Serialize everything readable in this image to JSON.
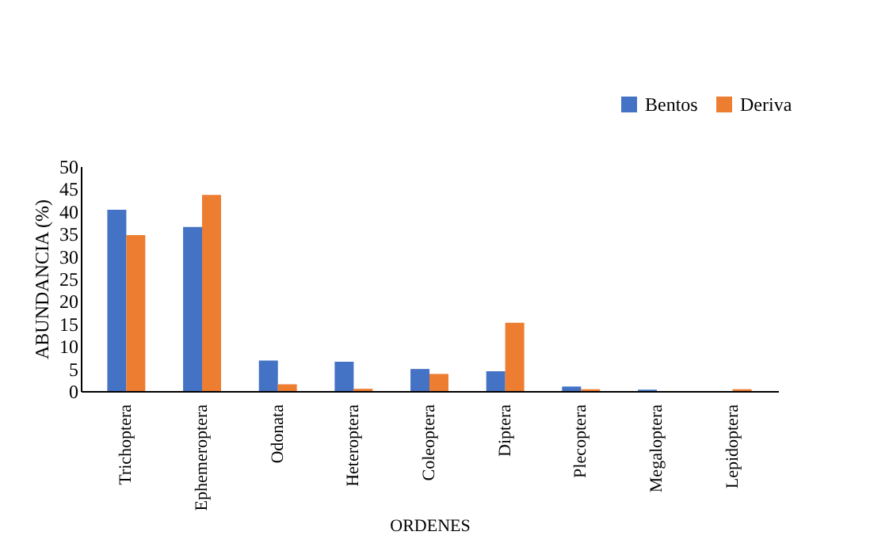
{
  "chart_data": {
    "type": "bar",
    "xlabel": "ORDENES",
    "ylabel": "ABUNDANCIA (%)",
    "categories": [
      "Trichoptera",
      "Ephemeroptera",
      "Odonata",
      "Heteroptera",
      "Coleoptera",
      "Diptera",
      "Plecoptera",
      "Megaloptera",
      "Lepidoptera"
    ],
    "series": [
      {
        "name": "Bentos",
        "color": "#4472c4",
        "values": [
          40.3,
          36.5,
          6.8,
          6.5,
          4.9,
          4.4,
          1.0,
          0.3,
          0
        ]
      },
      {
        "name": "Deriva",
        "color": "#ed7d31",
        "values": [
          34.7,
          43.6,
          1.5,
          0.5,
          3.8,
          15.2,
          0.4,
          0,
          0.4
        ]
      }
    ],
    "ylim": [
      0,
      50
    ],
    "yticks": [
      0,
      5,
      10,
      15,
      20,
      25,
      30,
      35,
      40,
      45,
      50
    ],
    "grid": false,
    "legend": "top right"
  }
}
